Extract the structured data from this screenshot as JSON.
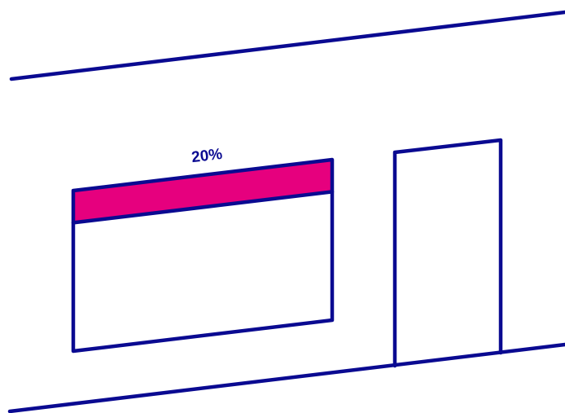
{
  "diagram": {
    "label": "20%",
    "highlighted_fraction": 0.2,
    "colors": {
      "stroke": "#0a0a91",
      "highlight": "#e6007e",
      "background": "#ffffff"
    }
  }
}
